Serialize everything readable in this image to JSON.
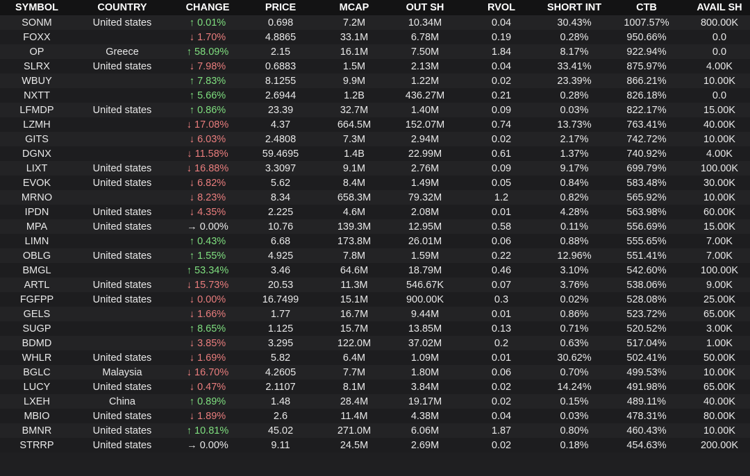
{
  "table": {
    "columns": [
      "SYMBOL",
      "COUNTRY",
      "CHANGE",
      "PRICE",
      "MCAP",
      "OUT SH",
      "RVOL",
      "SHORT INT",
      "CTB",
      "AVAIL SH"
    ],
    "change_column": 2,
    "rows": [
      [
        "SONM",
        "United states",
        "↑ 0.01%",
        "0.698",
        "7.2M",
        "10.34M",
        "0.04",
        "30.43%",
        "1007.57%",
        "800.00K"
      ],
      [
        "FOXX",
        null,
        "↓ 1.70%",
        "4.8865",
        "33.1M",
        "6.78M",
        "0.19",
        "0.28%",
        "950.66%",
        "0.0"
      ],
      [
        "OP",
        "Greece",
        "↑ 58.09%",
        "2.15",
        "16.1M",
        "7.50M",
        "1.84",
        "8.17%",
        "922.94%",
        "0.0"
      ],
      [
        "SLRX",
        "United states",
        "↓ 7.98%",
        "0.6883",
        "1.5M",
        "2.13M",
        "0.04",
        "33.41%",
        "875.97%",
        "4.00K"
      ],
      [
        "WBUY",
        null,
        "↑ 7.83%",
        "8.1255",
        "9.9M",
        "1.22M",
        "0.02",
        "23.39%",
        "866.21%",
        "10.00K"
      ],
      [
        "NXTT",
        null,
        "↑ 5.66%",
        "2.6944",
        "1.2B",
        "436.27M",
        "0.21",
        "0.28%",
        "826.18%",
        "0.0"
      ],
      [
        "LFMDP",
        "United states",
        "↑ 0.86%",
        "23.39",
        "32.7M",
        "1.40M",
        "0.09",
        "0.03%",
        "822.17%",
        "15.00K"
      ],
      [
        "LZMH",
        null,
        "↓ 17.08%",
        "4.37",
        "664.5M",
        "152.07M",
        "0.74",
        "13.73%",
        "763.41%",
        "40.00K"
      ],
      [
        "GITS",
        null,
        "↓ 6.03%",
        "2.4808",
        "7.3M",
        "2.94M",
        "0.02",
        "2.17%",
        "742.72%",
        "10.00K"
      ],
      [
        "DGNX",
        null,
        "↓ 11.58%",
        "59.4695",
        "1.4B",
        "22.99M",
        "0.61",
        "1.37%",
        "740.92%",
        "4.00K"
      ],
      [
        "LIXT",
        "United states",
        "↓ 16.88%",
        "3.3097",
        "9.1M",
        "2.76M",
        "0.09",
        "9.17%",
        "699.79%",
        "100.00K"
      ],
      [
        "EVOK",
        "United states",
        "↓ 6.82%",
        "5.62",
        "8.4M",
        "1.49M",
        "0.05",
        "0.84%",
        "583.48%",
        "30.00K"
      ],
      [
        "MRNO",
        null,
        "↓ 8.23%",
        "8.34",
        "658.3M",
        "79.32M",
        "1.2",
        "0.82%",
        "565.92%",
        "10.00K"
      ],
      [
        "IPDN",
        "United states",
        "↓ 4.35%",
        "2.225",
        "4.6M",
        "2.08M",
        "0.01",
        "4.28%",
        "563.98%",
        "60.00K"
      ],
      [
        "MPA",
        "United states",
        "→ 0.00%",
        "10.76",
        "139.3M",
        "12.95M",
        "0.58",
        "0.11%",
        "556.69%",
        "15.00K"
      ],
      [
        "LIMN",
        null,
        "↑ 0.43%",
        "6.68",
        "173.8M",
        "26.01M",
        "0.06",
        "0.88%",
        "555.65%",
        "7.00K"
      ],
      [
        "OBLG",
        "United states",
        "↑ 1.55%",
        "4.925",
        "7.8M",
        "1.59M",
        "0.22",
        "12.96%",
        "551.41%",
        "7.00K"
      ],
      [
        "BMGL",
        null,
        "↑ 53.34%",
        "3.46",
        "64.6M",
        "18.79M",
        "0.46",
        "3.10%",
        "542.60%",
        "100.00K"
      ],
      [
        "ARTL",
        "United states",
        "↓ 15.73%",
        "20.53",
        "11.3M",
        "546.67K",
        "0.07",
        "3.76%",
        "538.06%",
        "9.00K"
      ],
      [
        "FGFPP",
        "United states",
        "↓ 0.00%",
        "16.7499",
        "15.1M",
        "900.00K",
        "0.3",
        "0.02%",
        "528.08%",
        "25.00K"
      ],
      [
        "GELS",
        null,
        "↓ 1.66%",
        "1.77",
        "16.7M",
        "9.44M",
        "0.01",
        "0.86%",
        "523.72%",
        "65.00K"
      ],
      [
        "SUGP",
        null,
        "↑ 8.65%",
        "1.125",
        "15.7M",
        "13.85M",
        "0.13",
        "0.71%",
        "520.52%",
        "3.00K"
      ],
      [
        "BDMD",
        null,
        "↓ 3.85%",
        "3.295",
        "122.0M",
        "37.02M",
        "0.2",
        "0.63%",
        "517.04%",
        "1.00K"
      ],
      [
        "WHLR",
        "United states",
        "↓ 1.69%",
        "5.82",
        "6.4M",
        "1.09M",
        "0.01",
        "30.62%",
        "502.41%",
        "50.00K"
      ],
      [
        "BGLC",
        "Malaysia",
        "↓ 16.70%",
        "4.2605",
        "7.7M",
        "1.80M",
        "0.06",
        "0.70%",
        "499.53%",
        "10.00K"
      ],
      [
        "LUCY",
        "United states",
        "↓ 0.47%",
        "2.1107",
        "8.1M",
        "3.84M",
        "0.02",
        "14.24%",
        "491.98%",
        "65.00K"
      ],
      [
        "LXEH",
        "China",
        "↑ 0.89%",
        "1.48",
        "28.4M",
        "19.17M",
        "0.02",
        "0.15%",
        "489.11%",
        "40.00K"
      ],
      [
        "MBIO",
        "United states",
        "↓ 1.89%",
        "2.6",
        "11.4M",
        "4.38M",
        "0.04",
        "0.03%",
        "478.31%",
        "80.00K"
      ],
      [
        "BMNR",
        "United states",
        "↑ 10.81%",
        "45.02",
        "271.0M",
        "6.06M",
        "1.87",
        "0.80%",
        "460.43%",
        "10.00K"
      ],
      [
        "STRRP",
        "United states",
        "→ 0.00%",
        "9.11",
        "24.5M",
        "2.69M",
        "0.02",
        "0.18%",
        "454.63%",
        "200.00K"
      ]
    ],
    "change_colors": [
      "#7fdf7f",
      "#e97d7d",
      "#7fdf7f",
      "#e97d7d",
      "#7fdf7f",
      "#7fdf7f",
      "#7fdf7f",
      "#e97d7d",
      "#e97d7d",
      "#e97d7d",
      "#e97d7d",
      "#e97d7d",
      "#e97d7d",
      "#e97d7d",
      "#e8e8e8",
      "#7fdf7f",
      "#7fdf7f",
      "#7fdf7f",
      "#e97d7d",
      "#e97d7d",
      "#e97d7d",
      "#7fdf7f",
      "#e97d7d",
      "#e97d7d",
      "#e97d7d",
      "#e97d7d",
      "#7fdf7f",
      "#e97d7d",
      "#7fdf7f",
      "#e8e8e8"
    ]
  }
}
